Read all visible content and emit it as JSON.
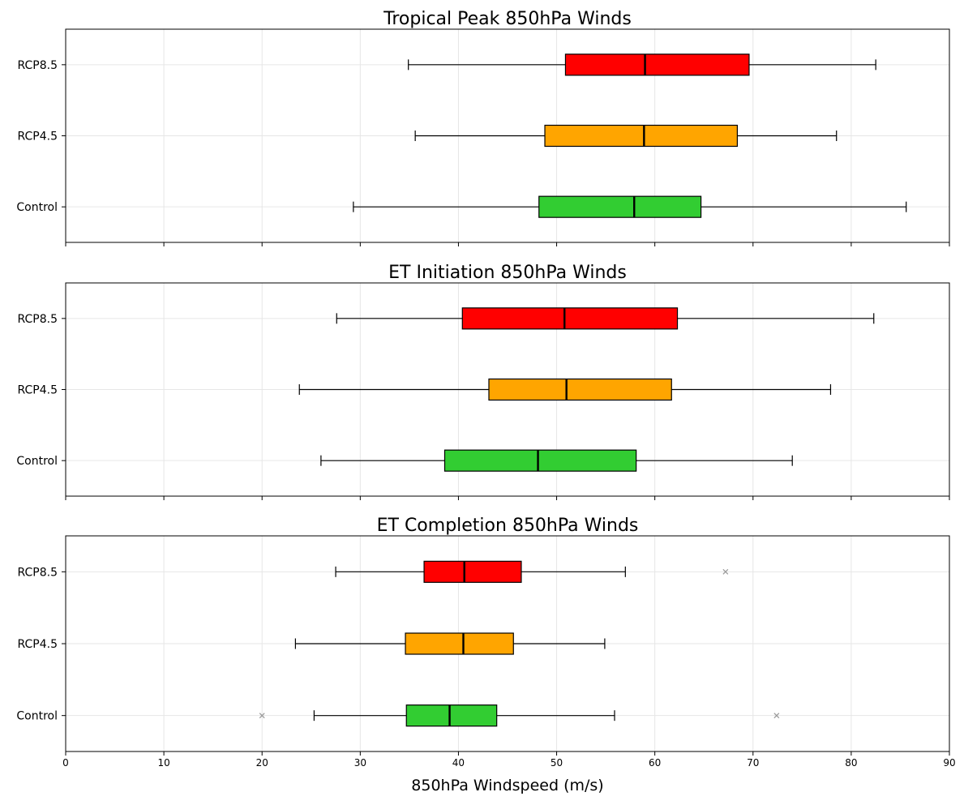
{
  "chart_data": [
    {
      "type": "boxplot",
      "orientation": "horizontal",
      "title": "Tropical Peak 850hPa Winds",
      "categories": [
        "RCP8.5",
        "RCP4.5",
        "Control"
      ],
      "xlim": [
        0,
        90
      ],
      "xticks": [
        "0",
        "10",
        "20",
        "30",
        "40",
        "50",
        "60",
        "70",
        "80",
        "90"
      ],
      "grid": true,
      "boxes": [
        {
          "category": "RCP8.5",
          "whisker_low": 34.9,
          "q1": 50.9,
          "median": 59.0,
          "q3": 69.6,
          "whisker_high": 82.5,
          "outliers": []
        },
        {
          "category": "RCP4.5",
          "whisker_low": 35.6,
          "q1": 48.8,
          "median": 58.9,
          "q3": 68.4,
          "whisker_high": 78.5,
          "outliers": []
        },
        {
          "category": "Control",
          "whisker_low": 29.3,
          "q1": 48.2,
          "median": 57.9,
          "q3": 64.7,
          "whisker_high": 85.6,
          "outliers": []
        }
      ]
    },
    {
      "type": "boxplot",
      "orientation": "horizontal",
      "title": "ET Initiation 850hPa Winds",
      "categories": [
        "RCP8.5",
        "RCP4.5",
        "Control"
      ],
      "xlim": [
        0,
        90
      ],
      "xticks": [
        "0",
        "10",
        "20",
        "30",
        "40",
        "50",
        "60",
        "70",
        "80",
        "90"
      ],
      "grid": true,
      "boxes": [
        {
          "category": "RCP8.5",
          "whisker_low": 27.6,
          "q1": 40.4,
          "median": 50.8,
          "q3": 62.3,
          "whisker_high": 82.3,
          "outliers": []
        },
        {
          "category": "RCP4.5",
          "whisker_low": 23.8,
          "q1": 43.1,
          "median": 51.0,
          "q3": 61.7,
          "whisker_high": 77.9,
          "outliers": []
        },
        {
          "category": "Control",
          "whisker_low": 26.0,
          "q1": 38.6,
          "median": 48.1,
          "q3": 58.1,
          "whisker_high": 74.0,
          "outliers": []
        }
      ]
    },
    {
      "type": "boxplot",
      "orientation": "horizontal",
      "title": "ET Completion 850hPa Winds",
      "categories": [
        "RCP8.5",
        "RCP4.5",
        "Control"
      ],
      "xlim": [
        0,
        90
      ],
      "xticks": [
        "0",
        "10",
        "20",
        "30",
        "40",
        "50",
        "60",
        "70",
        "80",
        "90"
      ],
      "xlabel": "850hPa Windspeed (m/s)",
      "grid": true,
      "boxes": [
        {
          "category": "RCP8.5",
          "whisker_low": 27.5,
          "q1": 36.5,
          "median": 40.6,
          "q3": 46.4,
          "whisker_high": 57.0,
          "outliers": [
            67.2
          ]
        },
        {
          "category": "RCP4.5",
          "whisker_low": 23.4,
          "q1": 34.6,
          "median": 40.5,
          "q3": 45.6,
          "whisker_high": 54.9,
          "outliers": []
        },
        {
          "category": "Control",
          "whisker_low": 25.3,
          "q1": 34.7,
          "median": 39.1,
          "q3": 43.9,
          "whisker_high": 55.9,
          "outliers": [
            20.0,
            72.4
          ]
        }
      ]
    }
  ],
  "colors": {
    "RCP8.5": "#ff0000",
    "RCP4.5": "#ffa500",
    "Control": "#32cd32",
    "grid": "#e6e6e6",
    "outlier": "#999999"
  }
}
